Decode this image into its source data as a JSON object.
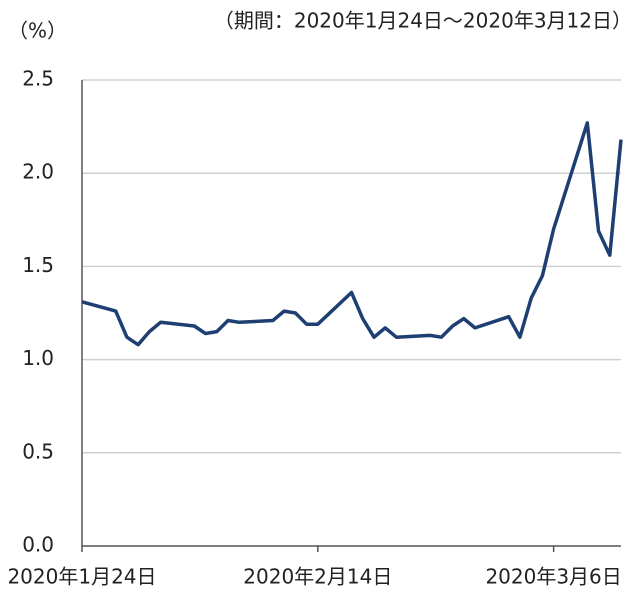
{
  "chart_data": {
    "type": "line",
    "subtitle": "（期間：2020年1月24日～2020年3月12日）",
    "y_label": "（%）",
    "x": [
      "2020-01-24",
      "2020-01-27",
      "2020-01-28",
      "2020-01-29",
      "2020-01-30",
      "2020-01-31",
      "2020-02-03",
      "2020-02-04",
      "2020-02-05",
      "2020-02-06",
      "2020-02-07",
      "2020-02-10",
      "2020-02-11",
      "2020-02-12",
      "2020-02-13",
      "2020-02-14",
      "2020-02-17",
      "2020-02-18",
      "2020-02-19",
      "2020-02-20",
      "2020-02-21",
      "2020-02-24",
      "2020-02-25",
      "2020-02-26",
      "2020-02-27",
      "2020-02-28",
      "2020-03-02",
      "2020-03-03",
      "2020-03-04",
      "2020-03-05",
      "2020-03-06",
      "2020-03-09",
      "2020-03-10",
      "2020-03-11",
      "2020-03-12"
    ],
    "series": [
      {
        "color": "#1f3f73",
        "values": [
          1.31,
          1.26,
          1.12,
          1.08,
          1.15,
          1.2,
          1.18,
          1.14,
          1.15,
          1.21,
          1.2,
          1.21,
          1.26,
          1.25,
          1.19,
          1.19,
          1.36,
          1.22,
          1.12,
          1.17,
          1.12,
          1.13,
          1.12,
          1.18,
          1.22,
          1.17,
          1.23,
          1.12,
          1.33,
          1.45,
          1.7,
          2.27,
          1.69,
          1.56,
          2.18
        ]
      }
    ],
    "xlim": [
      "2020-01-24",
      "2020-03-12"
    ],
    "xticks": [
      {
        "value": "2020-01-24",
        "label": "2020年1月24日"
      },
      {
        "value": "2020-02-14",
        "label": "2020年2月14日"
      },
      {
        "value": "2020-03-06",
        "label": "2020年3月6日"
      }
    ],
    "ylim": [
      0,
      2.5
    ],
    "yticks": [
      {
        "value": 0,
        "label": "0.0"
      },
      0.5,
      {
        "value": 1,
        "label": "1.0"
      },
      1.5,
      {
        "value": 2,
        "label": "2.0"
      },
      2.5
    ],
    "grid": true
  }
}
